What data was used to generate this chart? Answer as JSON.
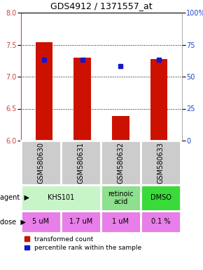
{
  "title": "GDS4912 / 1371557_at",
  "samples": [
    "GSM580630",
    "GSM580631",
    "GSM580632",
    "GSM580633"
  ],
  "red_values": [
    7.54,
    7.3,
    6.38,
    7.28
  ],
  "blue_values": [
    7.26,
    7.26,
    7.16,
    7.26
  ],
  "ylim_left": [
    6.0,
    8.0
  ],
  "ylim_right": [
    0,
    100
  ],
  "left_ticks": [
    6.0,
    6.5,
    7.0,
    7.5,
    8.0
  ],
  "right_ticks": [
    0,
    25,
    50,
    75,
    100
  ],
  "right_tick_labels": [
    "0",
    "25",
    "50",
    "75",
    "100%"
  ],
  "agent_data": [
    [
      0,
      2,
      "KHS101",
      "#c8f5c8"
    ],
    [
      2,
      1,
      "retinoic\nacid",
      "#8de08d"
    ],
    [
      3,
      1,
      "DMSO",
      "#3ada3a"
    ]
  ],
  "dose_labels": [
    "5 uM",
    "1.7 uM",
    "1 uM",
    "0.1 %"
  ],
  "dose_color": "#e87ee8",
  "bar_color": "#cc1100",
  "dot_color": "#1515cc",
  "bar_bottom": 6.0,
  "gsm_bg": "#cccccc",
  "fig_w": 2.9,
  "fig_h": 3.84,
  "dpi": 100,
  "title_fontsize": 9,
  "tick_fontsize": 7,
  "table_fontsize": 7,
  "legend_fontsize": 6.5
}
